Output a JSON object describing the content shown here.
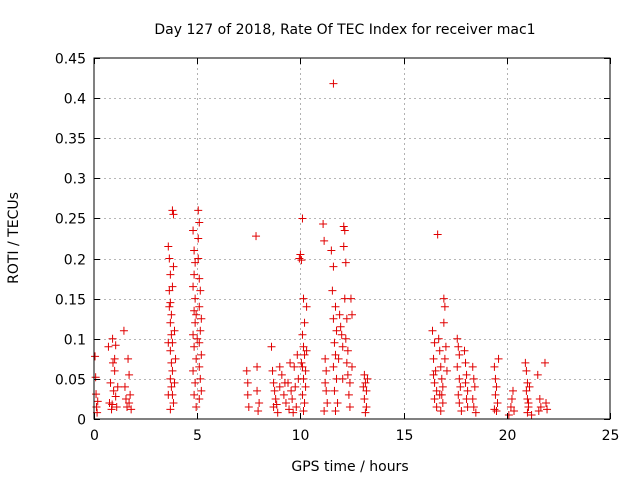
{
  "chart_data": {
    "type": "scatter",
    "title": "Day 127 of 2018, Rate Of TEC Index for receiver mac1",
    "xlabel": "GPS time / hours",
    "ylabel": "ROTI / TECUs",
    "xlim": [
      0,
      25
    ],
    "ylim": [
      0,
      0.45
    ],
    "xticks": [
      0,
      5,
      10,
      15,
      20,
      25
    ],
    "xtick_labels": [
      "0",
      "5",
      "10",
      "15",
      "20",
      "25"
    ],
    "yticks": [
      0,
      0.05,
      0.1,
      0.15,
      0.2,
      0.25,
      0.3,
      0.35,
      0.4,
      0.45
    ],
    "ytick_labels": [
      "0",
      "0.05",
      "0.1",
      "0.15",
      "0.2",
      "0.25",
      "0.3",
      "0.35",
      "0.4",
      "0.45"
    ],
    "grid": true,
    "marker": "+",
    "color": "#e00000",
    "series": [
      {
        "name": "ROTI",
        "points": [
          [
            0.05,
            0.078
          ],
          [
            0.08,
            0.052
          ],
          [
            0.1,
            0.031
          ],
          [
            0.12,
            0.015
          ],
          [
            0.15,
            0.008
          ],
          [
            0.18,
            0.022
          ],
          [
            0.7,
            0.09
          ],
          [
            0.75,
            0.02
          ],
          [
            0.8,
            0.045
          ],
          [
            0.85,
            0.012
          ],
          [
            0.9,
            0.1
          ],
          [
            0.92,
            0.07
          ],
          [
            0.95,
            0.035
          ],
          [
            1.0,
            0.06
          ],
          [
            1.05,
            0.092
          ],
          [
            1.05,
            0.028
          ],
          [
            1.1,
            0.015
          ],
          [
            1.15,
            0.04
          ],
          [
            1.0,
            0.075
          ],
          [
            0.88,
            0.018
          ],
          [
            1.45,
            0.11
          ],
          [
            1.5,
            0.04
          ],
          [
            1.55,
            0.025
          ],
          [
            1.6,
            0.015
          ],
          [
            1.65,
            0.075
          ],
          [
            1.7,
            0.055
          ],
          [
            1.75,
            0.03
          ],
          [
            1.8,
            0.012
          ],
          [
            1.7,
            0.02
          ],
          [
            3.6,
            0.215
          ],
          [
            3.65,
            0.2
          ],
          [
            3.7,
            0.18
          ],
          [
            3.65,
            0.16
          ],
          [
            3.7,
            0.145
          ],
          [
            3.75,
            0.13
          ],
          [
            3.7,
            0.12
          ],
          [
            3.75,
            0.105
          ],
          [
            3.8,
            0.095
          ],
          [
            3.7,
            0.085
          ],
          [
            3.75,
            0.07
          ],
          [
            3.8,
            0.06
          ],
          [
            3.7,
            0.05
          ],
          [
            3.75,
            0.04
          ],
          [
            3.8,
            0.03
          ],
          [
            3.85,
            0.02
          ],
          [
            3.7,
            0.012
          ],
          [
            3.8,
            0.26
          ],
          [
            3.85,
            0.255
          ],
          [
            3.8,
            0.165
          ],
          [
            3.9,
            0.11
          ],
          [
            3.6,
            0.095
          ],
          [
            3.9,
            0.045
          ],
          [
            3.6,
            0.03
          ],
          [
            3.95,
            0.075
          ],
          [
            3.65,
            0.14
          ],
          [
            3.85,
            0.19
          ],
          [
            4.8,
            0.235
          ],
          [
            4.85,
            0.21
          ],
          [
            4.9,
            0.195
          ],
          [
            4.85,
            0.18
          ],
          [
            4.8,
            0.165
          ],
          [
            4.9,
            0.15
          ],
          [
            4.85,
            0.135
          ],
          [
            4.9,
            0.12
          ],
          [
            4.8,
            0.105
          ],
          [
            4.85,
            0.09
          ],
          [
            4.95,
            0.075
          ],
          [
            4.8,
            0.06
          ],
          [
            4.9,
            0.045
          ],
          [
            4.85,
            0.03
          ],
          [
            4.95,
            0.015
          ],
          [
            5.05,
            0.26
          ],
          [
            5.1,
            0.245
          ],
          [
            5.05,
            0.225
          ],
          [
            5.1,
            0.175
          ],
          [
            5.15,
            0.16
          ],
          [
            5.1,
            0.14
          ],
          [
            5.2,
            0.125
          ],
          [
            5.15,
            0.11
          ],
          [
            5.1,
            0.095
          ],
          [
            5.2,
            0.08
          ],
          [
            5.1,
            0.065
          ],
          [
            5.15,
            0.05
          ],
          [
            5.2,
            0.035
          ],
          [
            5.1,
            0.025
          ],
          [
            5.0,
            0.1
          ],
          [
            4.95,
            0.13
          ],
          [
            5.05,
            0.2
          ],
          [
            7.4,
            0.06
          ],
          [
            7.45,
            0.03
          ],
          [
            7.5,
            0.015
          ],
          [
            7.45,
            0.045
          ],
          [
            7.85,
            0.228
          ],
          [
            7.9,
            0.065
          ],
          [
            7.95,
            0.01
          ],
          [
            7.9,
            0.035
          ],
          [
            8.0,
            0.02
          ],
          [
            8.6,
            0.09
          ],
          [
            8.65,
            0.06
          ],
          [
            8.7,
            0.045
          ],
          [
            8.75,
            0.035
          ],
          [
            8.8,
            0.025
          ],
          [
            8.7,
            0.015
          ],
          [
            8.9,
            0.008
          ],
          [
            9.0,
            0.04
          ],
          [
            9.1,
            0.055
          ],
          [
            9.2,
            0.03
          ],
          [
            9.3,
            0.02
          ],
          [
            9.4,
            0.045
          ],
          [
            9.45,
            0.012
          ],
          [
            9.5,
            0.07
          ],
          [
            9.55,
            0.035
          ],
          [
            9.6,
            0.025
          ],
          [
            9.7,
            0.065
          ],
          [
            9.75,
            0.04
          ],
          [
            9.8,
            0.015
          ],
          [
            9.85,
            0.08
          ],
          [
            9.9,
            0.05
          ],
          [
            9.0,
            0.065
          ],
          [
            8.85,
            0.018
          ],
          [
            9.25,
            0.045
          ],
          [
            9.65,
            0.008
          ],
          [
            9.95,
            0.2
          ],
          [
            10.0,
            0.205
          ],
          [
            10.05,
            0.198
          ],
          [
            10.1,
            0.25
          ],
          [
            10.15,
            0.15
          ],
          [
            10.2,
            0.12
          ],
          [
            10.1,
            0.105
          ],
          [
            10.15,
            0.09
          ],
          [
            10.2,
            0.08
          ],
          [
            10.1,
            0.065
          ],
          [
            10.15,
            0.05
          ],
          [
            10.25,
            0.04
          ],
          [
            10.1,
            0.03
          ],
          [
            10.2,
            0.02
          ],
          [
            10.15,
            0.01
          ],
          [
            10.3,
            0.14
          ],
          [
            10.05,
            0.07
          ],
          [
            10.3,
            0.085
          ],
          [
            10.25,
            0.06
          ],
          [
            11.1,
            0.243
          ],
          [
            11.15,
            0.222
          ],
          [
            11.2,
            0.075
          ],
          [
            11.25,
            0.06
          ],
          [
            11.2,
            0.045
          ],
          [
            11.25,
            0.035
          ],
          [
            11.3,
            0.02
          ],
          [
            11.15,
            0.01
          ],
          [
            11.6,
            0.418
          ],
          [
            11.5,
            0.21
          ],
          [
            11.6,
            0.19
          ],
          [
            11.55,
            0.16
          ],
          [
            11.7,
            0.14
          ],
          [
            11.6,
            0.125
          ],
          [
            11.75,
            0.11
          ],
          [
            11.65,
            0.095
          ],
          [
            11.7,
            0.08
          ],
          [
            11.6,
            0.065
          ],
          [
            11.75,
            0.05
          ],
          [
            11.65,
            0.035
          ],
          [
            11.8,
            0.02
          ],
          [
            11.7,
            0.01
          ],
          [
            11.9,
            0.13
          ],
          [
            11.95,
            0.115
          ],
          [
            12.0,
            0.105
          ],
          [
            12.05,
            0.09
          ],
          [
            12.1,
            0.24
          ],
          [
            12.15,
            0.235
          ],
          [
            12.1,
            0.215
          ],
          [
            12.2,
            0.195
          ],
          [
            12.15,
            0.15
          ],
          [
            12.25,
            0.125
          ],
          [
            12.2,
            0.1
          ],
          [
            12.3,
            0.085
          ],
          [
            12.25,
            0.07
          ],
          [
            12.3,
            0.055
          ],
          [
            12.4,
            0.045
          ],
          [
            12.35,
            0.03
          ],
          [
            12.4,
            0.015
          ],
          [
            12.45,
            0.15
          ],
          [
            12.5,
            0.13
          ],
          [
            12.5,
            0.065
          ],
          [
            11.85,
            0.075
          ],
          [
            12.05,
            0.05
          ],
          [
            13.1,
            0.055
          ],
          [
            13.15,
            0.045
          ],
          [
            13.2,
            0.035
          ],
          [
            13.1,
            0.025
          ],
          [
            13.2,
            0.015
          ],
          [
            13.15,
            0.008
          ],
          [
            13.25,
            0.05
          ],
          [
            13.05,
            0.04
          ],
          [
            16.4,
            0.11
          ],
          [
            16.5,
            0.095
          ],
          [
            16.45,
            0.075
          ],
          [
            16.55,
            0.06
          ],
          [
            16.5,
            0.045
          ],
          [
            16.6,
            0.035
          ],
          [
            16.5,
            0.025
          ],
          [
            16.6,
            0.015
          ],
          [
            16.65,
            0.23
          ],
          [
            16.7,
            0.1
          ],
          [
            16.75,
            0.085
          ],
          [
            16.8,
            0.065
          ],
          [
            16.85,
            0.05
          ],
          [
            16.9,
            0.04
          ],
          [
            16.85,
            0.03
          ],
          [
            16.9,
            0.02
          ],
          [
            16.8,
            0.01
          ],
          [
            16.95,
            0.15
          ],
          [
            17.0,
            0.14
          ],
          [
            16.95,
            0.12
          ],
          [
            17.05,
            0.09
          ],
          [
            17.0,
            0.075
          ],
          [
            17.1,
            0.06
          ],
          [
            16.45,
            0.055
          ],
          [
            16.75,
            0.03
          ],
          [
            17.6,
            0.1
          ],
          [
            17.65,
            0.09
          ],
          [
            17.7,
            0.08
          ],
          [
            17.6,
            0.065
          ],
          [
            17.7,
            0.05
          ],
          [
            17.75,
            0.04
          ],
          [
            17.65,
            0.03
          ],
          [
            17.7,
            0.02
          ],
          [
            17.8,
            0.01
          ],
          [
            17.95,
            0.085
          ],
          [
            18.0,
            0.07
          ],
          [
            18.05,
            0.055
          ],
          [
            18.0,
            0.045
          ],
          [
            18.1,
            0.035
          ],
          [
            18.05,
            0.025
          ],
          [
            18.1,
            0.015
          ],
          [
            18.35,
            0.065
          ],
          [
            18.4,
            0.05
          ],
          [
            18.45,
            0.04
          ],
          [
            18.35,
            0.025
          ],
          [
            18.4,
            0.015
          ],
          [
            18.5,
            0.008
          ],
          [
            19.4,
            0.065
          ],
          [
            19.45,
            0.05
          ],
          [
            19.5,
            0.04
          ],
          [
            19.45,
            0.03
          ],
          [
            19.55,
            0.02
          ],
          [
            19.5,
            0.01
          ],
          [
            19.6,
            0.075
          ],
          [
            19.4,
            0.012
          ],
          [
            20.1,
            0.005
          ],
          [
            20.2,
            0.015
          ],
          [
            20.3,
            0.035
          ],
          [
            20.25,
            0.025
          ],
          [
            20.35,
            0.01
          ],
          [
            20.9,
            0.07
          ],
          [
            20.95,
            0.06
          ],
          [
            21.0,
            0.045
          ],
          [
            20.95,
            0.035
          ],
          [
            21.0,
            0.025
          ],
          [
            21.05,
            0.015
          ],
          [
            21.0,
            0.008
          ],
          [
            21.1,
            0.04
          ],
          [
            21.05,
            0.02
          ],
          [
            21.2,
            0.005
          ],
          [
            21.5,
            0.055
          ],
          [
            21.6,
            0.025
          ],
          [
            21.65,
            0.015
          ],
          [
            21.55,
            0.01
          ],
          [
            21.85,
            0.07
          ],
          [
            21.9,
            0.02
          ],
          [
            21.95,
            0.012
          ]
        ]
      }
    ]
  }
}
